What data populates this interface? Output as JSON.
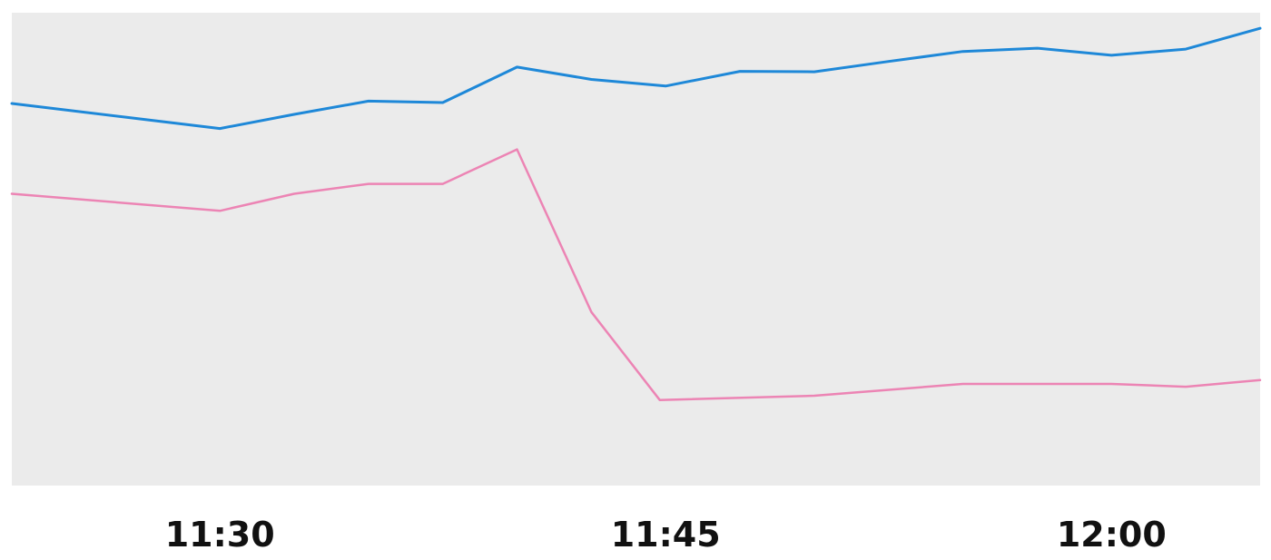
{
  "chart_data": {
    "type": "line",
    "x": [
      "11:23",
      "11:30",
      "11:32.5",
      "11:35",
      "11:37.5",
      "11:40",
      "11:42.5",
      "11:45",
      "11:47.5",
      "11:50",
      "11:52.5",
      "11:55",
      "11:57.5",
      "12:00",
      "12:02.5",
      "12:05"
    ],
    "x_ticks": [
      "11:30",
      "11:45",
      "12:00"
    ],
    "series": [
      {
        "color": "#1e88d8",
        "points": [
          [
            "11:23",
            80.8
          ],
          [
            "11:30",
            75.5
          ],
          [
            "11:32.5",
            78.5
          ],
          [
            "11:35",
            81.3
          ],
          [
            "11:37.5",
            81.0
          ],
          [
            "11:40",
            88.5
          ],
          [
            "11:42.5",
            85.9
          ],
          [
            "11:45",
            84.5
          ],
          [
            "11:47.5",
            87.6
          ],
          [
            "11:50",
            87.5
          ],
          [
            "11:52.5",
            89.7
          ],
          [
            "11:55",
            91.8
          ],
          [
            "11:57.5",
            92.5
          ],
          [
            "12:00",
            91.0
          ],
          [
            "12:02.5",
            92.3
          ],
          [
            "12:05",
            96.7
          ]
        ]
      },
      {
        "color": "#ec84b4",
        "points": [
          [
            "11:23",
            61.7
          ],
          [
            "11:30",
            58.1
          ],
          [
            "11:32.5",
            61.7
          ],
          [
            "11:35",
            63.8
          ],
          [
            "11:37.5",
            63.8
          ],
          [
            "11:40",
            71.1
          ],
          [
            "11:42.5",
            36.7
          ],
          [
            "11:44.8",
            18.1
          ],
          [
            "11:50",
            19.0
          ],
          [
            "11:55",
            21.5
          ],
          [
            "11:57.5",
            21.5
          ],
          [
            "12:00",
            21.5
          ],
          [
            "12:02.5",
            20.9
          ],
          [
            "12:05",
            22.3
          ]
        ]
      }
    ],
    "background": "#ebebeb",
    "grid": false,
    "ylim": [
      0,
      100
    ],
    "legend": "none"
  }
}
